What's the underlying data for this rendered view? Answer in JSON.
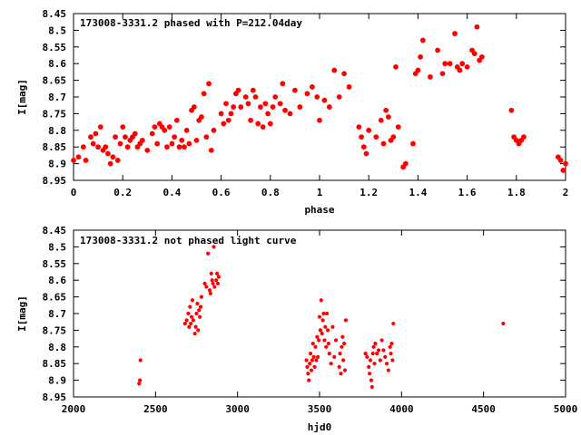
{
  "chart_data": [
    {
      "type": "scatter",
      "title": "173008-3331.2 phased with P=212.04day",
      "xlabel": "phase",
      "ylabel": "I[mag]",
      "xlim": [
        0,
        2
      ],
      "ylim": [
        8.45,
        8.95
      ],
      "y_inverted": true,
      "x_ticks": [
        "0",
        "0.2",
        "0.4",
        "0.6",
        "0.8",
        "1",
        "1.2",
        "1.4",
        "1.6",
        "1.8",
        "2"
      ],
      "y_ticks": [
        "8.45",
        "8.5",
        "8.55",
        "8.6",
        "8.65",
        "8.7",
        "8.75",
        "8.8",
        "8.85",
        "8.9",
        "8.95"
      ],
      "grid": false,
      "color": "#ff0000",
      "series": [
        {
          "x": [
            0.0,
            0.02,
            0.04,
            0.05,
            0.07,
            0.08,
            0.09,
            0.1,
            0.11,
            0.12,
            0.13,
            0.14,
            0.15,
            0.16,
            0.17,
            0.18,
            0.19,
            0.2,
            0.21,
            0.22,
            0.23,
            0.24,
            0.25,
            0.26,
            0.27,
            0.28,
            0.3,
            0.32,
            0.33,
            0.34,
            0.35,
            0.36,
            0.37,
            0.38,
            0.39,
            0.4,
            0.41,
            0.42,
            0.43,
            0.44,
            0.45,
            0.46,
            0.47,
            0.48,
            0.49,
            0.5,
            0.51,
            0.52,
            0.53,
            0.54,
            0.55,
            0.56,
            0.57,
            0.6,
            0.61,
            0.62,
            0.63,
            0.64,
            0.65,
            0.66,
            0.67,
            0.68,
            0.7,
            0.71,
            0.72,
            0.73,
            0.74,
            0.75,
            0.76,
            0.77,
            0.78,
            0.79,
            0.8,
            0.81,
            0.82,
            0.84,
            0.85,
            0.86,
            0.88,
            0.9,
            0.92,
            0.95,
            0.97,
            0.99,
            1.0,
            1.02,
            1.04,
            1.06,
            1.08,
            1.1,
            1.12,
            1.16,
            1.17,
            1.18,
            1.19,
            1.2,
            1.23,
            1.25,
            1.26,
            1.27,
            1.28,
            1.29,
            1.3,
            1.31,
            1.32,
            1.34,
            1.35,
            1.38,
            1.39,
            1.4,
            1.41,
            1.42,
            1.45,
            1.48,
            1.5,
            1.51,
            1.53,
            1.55,
            1.56,
            1.57,
            1.58,
            1.6,
            1.62,
            1.63,
            1.64,
            1.65,
            1.66,
            1.78,
            1.79,
            1.8,
            1.81,
            1.82,
            1.83,
            1.97,
            1.98,
            1.99,
            2.0
          ],
          "y": [
            8.89,
            8.88,
            8.85,
            8.89,
            8.82,
            8.84,
            8.81,
            8.85,
            8.79,
            8.86,
            8.85,
            8.87,
            8.9,
            8.88,
            8.82,
            8.89,
            8.84,
            8.79,
            8.82,
            8.85,
            8.83,
            8.82,
            8.81,
            8.85,
            8.84,
            8.83,
            8.86,
            8.81,
            8.79,
            8.84,
            8.78,
            8.79,
            8.8,
            8.85,
            8.79,
            8.84,
            8.82,
            8.77,
            8.85,
            8.83,
            8.85,
            8.8,
            8.84,
            8.74,
            8.73,
            8.83,
            8.77,
            8.76,
            8.69,
            8.82,
            8.66,
            8.86,
            8.8,
            8.75,
            8.78,
            8.72,
            8.77,
            8.75,
            8.73,
            8.69,
            8.68,
            8.73,
            8.7,
            8.72,
            8.77,
            8.68,
            8.7,
            8.78,
            8.73,
            8.79,
            8.72,
            8.75,
            8.78,
            8.73,
            8.7,
            8.72,
            8.66,
            8.74,
            8.75,
            8.68,
            8.73,
            8.69,
            8.67,
            8.7,
            8.77,
            8.71,
            8.73,
            8.62,
            8.7,
            8.63,
            8.67,
            8.79,
            8.82,
            8.85,
            8.87,
            8.8,
            8.82,
            8.77,
            8.84,
            8.74,
            8.76,
            8.83,
            8.82,
            8.61,
            8.79,
            8.91,
            8.9,
            8.84,
            8.63,
            8.62,
            8.58,
            8.53,
            8.64,
            8.56,
            8.63,
            8.6,
            8.6,
            8.51,
            8.61,
            8.62,
            8.6,
            8.61,
            8.56,
            8.57,
            8.49,
            8.59,
            8.58,
            8.74,
            8.82,
            8.83,
            8.84,
            8.83,
            8.82,
            8.88,
            8.89,
            8.92,
            8.9
          ]
        }
      ]
    },
    {
      "type": "scatter",
      "title": "173008-3331.2 not phased light curve",
      "xlabel": "hjd0",
      "ylabel": "I[mag]",
      "xlim": [
        2000,
        5000
      ],
      "ylim": [
        8.45,
        8.95
      ],
      "y_inverted": true,
      "x_ticks": [
        "2000",
        "2500",
        "3000",
        "3500",
        "4000",
        "4500",
        "5000"
      ],
      "y_ticks": [
        "8.45",
        "8.5",
        "8.55",
        "8.6",
        "8.65",
        "8.7",
        "8.75",
        "8.8",
        "8.85",
        "8.9",
        "8.95"
      ],
      "grid": false,
      "color": "#ff0000",
      "series": [
        {
          "x": [
            2400,
            2405,
            2408,
            2680,
            2690,
            2700,
            2705,
            2710,
            2715,
            2720,
            2725,
            2730,
            2740,
            2745,
            2750,
            2755,
            2760,
            2765,
            2770,
            2775,
            2780,
            2800,
            2810,
            2820,
            2830,
            2835,
            2840,
            2845,
            2850,
            2855,
            2860,
            2870,
            2875,
            2880,
            2885,
            3420,
            3425,
            3430,
            3435,
            3440,
            3445,
            3450,
            3455,
            3460,
            3465,
            3470,
            3475,
            3480,
            3485,
            3490,
            3495,
            3500,
            3505,
            3510,
            3515,
            3520,
            3525,
            3530,
            3535,
            3540,
            3545,
            3550,
            3555,
            3560,
            3570,
            3580,
            3590,
            3600,
            3620,
            3625,
            3630,
            3635,
            3640,
            3645,
            3650,
            3655,
            3660,
            3780,
            3790,
            3800,
            3805,
            3810,
            3815,
            3820,
            3825,
            3830,
            3835,
            3840,
            3850,
            3860,
            3870,
            3880,
            3890,
            3900,
            3910,
            3920,
            3930,
            3935,
            3940,
            3945,
            3950,
            4620
          ],
          "y": [
            8.91,
            8.9,
            8.84,
            8.73,
            8.72,
            8.7,
            8.74,
            8.68,
            8.73,
            8.71,
            8.66,
            8.72,
            8.76,
            8.74,
            8.7,
            8.67,
            8.75,
            8.69,
            8.71,
            8.68,
            8.65,
            8.61,
            8.62,
            8.52,
            8.63,
            8.64,
            8.58,
            8.6,
            8.61,
            8.5,
            8.62,
            8.6,
            8.58,
            8.61,
            8.59,
            8.84,
            8.86,
            8.88,
            8.9,
            8.85,
            8.82,
            8.87,
            8.84,
            8.79,
            8.83,
            8.86,
            8.8,
            8.84,
            8.77,
            8.83,
            8.78,
            8.71,
            8.75,
            8.66,
            8.76,
            8.72,
            8.7,
            8.78,
            8.74,
            8.8,
            8.7,
            8.75,
            8.79,
            8.82,
            8.85,
            8.74,
            8.83,
            8.78,
            8.86,
            8.82,
            8.88,
            8.8,
            8.77,
            8.84,
            8.79,
            8.87,
            8.72,
            8.82,
            8.83,
            8.86,
            8.88,
            8.84,
            8.9,
            8.92,
            8.82,
            8.8,
            8.85,
            8.79,
            8.82,
            8.81,
            8.84,
            8.78,
            8.81,
            8.83,
            8.85,
            8.87,
            8.8,
            8.82,
            8.79,
            8.84,
            8.73,
            8.73
          ]
        }
      ]
    }
  ]
}
